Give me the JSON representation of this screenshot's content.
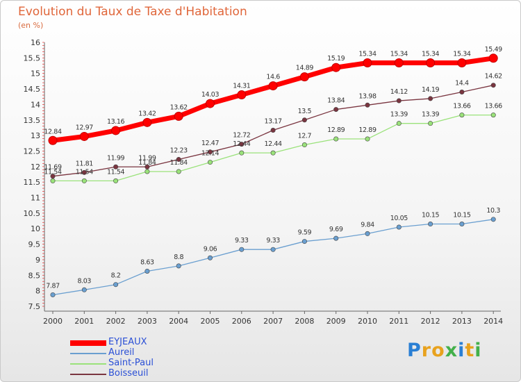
{
  "chart_data": {
    "type": "line",
    "title": "Evolution du Taux de Taxe d'Habitation",
    "unit": "(en %)",
    "x": [
      "2000",
      "2001",
      "2002",
      "2003",
      "2004",
      "2005",
      "2006",
      "2007",
      "2008",
      "2009",
      "2010",
      "2011",
      "2012",
      "2013",
      "2014"
    ],
    "ylim": [
      7.5,
      16
    ],
    "yticks": [
      "7.5",
      "8",
      "8.5",
      "9",
      "9.5",
      "10",
      "10.5",
      "11",
      "11.5",
      "12",
      "12.5",
      "13",
      "13.5",
      "14",
      "14.5",
      "15",
      "15.5",
      "16"
    ],
    "grid": false,
    "legend_position": "bottom-left",
    "series": [
      {
        "name": "EYJEAUX",
        "color": "#ff0000",
        "values": [
          12.84,
          12.97,
          13.16,
          13.42,
          13.62,
          14.03,
          14.31,
          14.6,
          14.89,
          15.19,
          15.34,
          15.34,
          15.34,
          15.34,
          15.49
        ],
        "labels": [
          "12.84",
          "12.97",
          "13.16",
          "13.42",
          "13.62",
          "14.03",
          "14.31",
          "14.6",
          "14.89",
          "15.19",
          "15.34",
          "15.34",
          "15.34",
          "15.34",
          "15.49"
        ]
      },
      {
        "name": "Aureil",
        "color": "#6a9fd0",
        "values": [
          7.87,
          8.03,
          8.2,
          8.63,
          8.8,
          9.06,
          9.33,
          9.33,
          9.59,
          9.69,
          9.84,
          10.05,
          10.15,
          10.15,
          10.3
        ],
        "labels": [
          "7.87",
          "8.03",
          "8.2",
          "8.63",
          "8.8",
          "9.06",
          "9.33",
          "9.33",
          "9.59",
          "9.69",
          "9.84",
          "10.05",
          "10.15",
          "10.15",
          "10.3"
        ]
      },
      {
        "name": "Saint-Paul",
        "color": "#9ae27a",
        "values": [
          11.54,
          11.54,
          11.54,
          11.84,
          11.84,
          12.14,
          12.44,
          12.44,
          12.7,
          12.89,
          12.89,
          13.39,
          13.39,
          13.66,
          13.66
        ],
        "labels": [
          "11.54",
          "11.54",
          "11.54",
          "11.84",
          "11.84",
          "12.14",
          "12.44",
          "12.44",
          "12.7",
          "12.89",
          "12.89",
          "13.39",
          "13.39",
          "13.66",
          "13.66"
        ]
      },
      {
        "name": "Boisseuil",
        "color": "#7a3540",
        "values": [
          11.69,
          11.81,
          11.99,
          11.99,
          12.23,
          12.47,
          12.72,
          13.17,
          13.5,
          13.84,
          13.98,
          14.12,
          14.19,
          14.4,
          14.62
        ],
        "labels": [
          "11.69",
          "11.81",
          "11.99",
          "11.99",
          "12.23",
          "12.47",
          "12.72",
          "13.17",
          "13.5",
          "13.84",
          "13.98",
          "14.12",
          "14.19",
          "14.4",
          "14.62"
        ]
      }
    ]
  },
  "logo": {
    "letters": [
      {
        "ch": "P",
        "color": "#2a7fd4"
      },
      {
        "ch": "r",
        "color": "#e8a21e"
      },
      {
        "ch": "o",
        "color": "#e8a21e"
      },
      {
        "ch": "x",
        "color": "#43b04a"
      },
      {
        "ch": "i",
        "color": "#2a7fd4"
      },
      {
        "ch": "t",
        "color": "#e8a21e"
      },
      {
        "ch": "i",
        "color": "#43b04a"
      }
    ]
  }
}
